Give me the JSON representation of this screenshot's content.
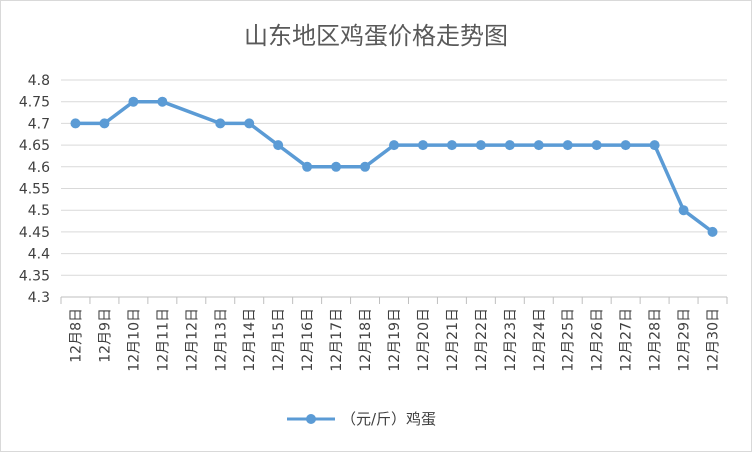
{
  "chart_data": {
    "type": "line",
    "title": "山东地区鸡蛋价格走势图",
    "xlabel": "",
    "ylabel": "",
    "categories": [
      "12月8日",
      "12月9日",
      "12月10日",
      "12月11日",
      "12月12日",
      "12月13日",
      "12月14日",
      "12月15日",
      "12月16日",
      "12月17日",
      "12月18日",
      "12月19日",
      "12月20日",
      "12月21日",
      "12月22日",
      "12月23日",
      "12月24日",
      "12月25日",
      "12月26日",
      "12月27日",
      "12月28日",
      "12月29日",
      "12月30日"
    ],
    "series": [
      {
        "name": "（元/斤）鸡蛋",
        "values": [
          4.7,
          4.7,
          4.75,
          4.75,
          null,
          4.7,
          4.7,
          4.65,
          4.6,
          4.6,
          4.6,
          4.65,
          4.65,
          4.65,
          4.65,
          4.65,
          4.65,
          4.65,
          4.65,
          4.65,
          4.65,
          4.5,
          4.45
        ]
      }
    ],
    "ylim": [
      4.3,
      4.8
    ],
    "yticks": [
      "4.3",
      "4.35",
      "4.4",
      "4.45",
      "4.5",
      "4.55",
      "4.6",
      "4.65",
      "4.7",
      "4.75",
      "4.8"
    ],
    "grid": true,
    "legend_position": "bottom",
    "colors": {
      "line": "#5b9bd5",
      "grid": "#d9d9d9",
      "axis": "#bfbfbf"
    }
  }
}
